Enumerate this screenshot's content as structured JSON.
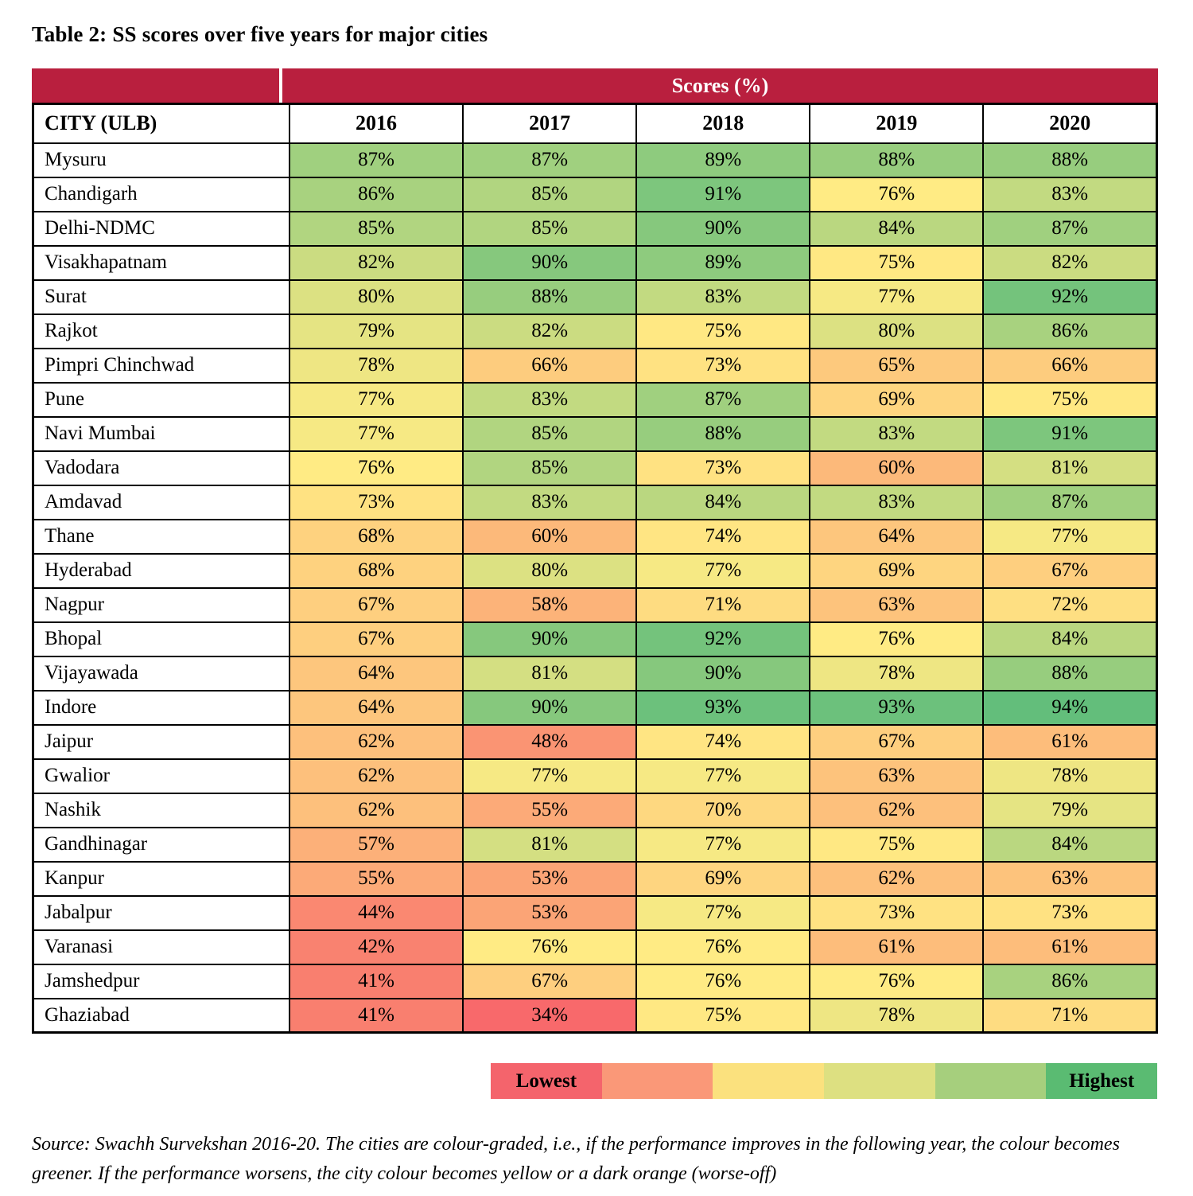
{
  "chart_data": {
    "type": "heatmap",
    "title": "Table 2: SS scores over five years for major cities",
    "group_header": "Scores (%)",
    "group_header_bg": "#B91F3E",
    "group_header_text_color": "#FFFFFF",
    "row_header": "CITY (ULB)",
    "columns": [
      "2016",
      "2017",
      "2018",
      "2019",
      "2020"
    ],
    "value_suffix": "%",
    "rows": [
      {
        "city": "Mysuru",
        "values": [
          87,
          87,
          89,
          88,
          88
        ]
      },
      {
        "city": "Chandigarh",
        "values": [
          86,
          85,
          91,
          76,
          83
        ]
      },
      {
        "city": "Delhi-NDMC",
        "values": [
          85,
          85,
          90,
          84,
          87
        ]
      },
      {
        "city": "Visakhapatnam",
        "values": [
          82,
          90,
          89,
          75,
          82
        ]
      },
      {
        "city": "Surat",
        "values": [
          80,
          88,
          83,
          77,
          92
        ]
      },
      {
        "city": "Rajkot",
        "values": [
          79,
          82,
          75,
          80,
          86
        ]
      },
      {
        "city": "Pimpri Chinchwad",
        "values": [
          78,
          66,
          73,
          65,
          66
        ]
      },
      {
        "city": "Pune",
        "values": [
          77,
          83,
          87,
          69,
          75
        ]
      },
      {
        "city": "Navi Mumbai",
        "values": [
          77,
          85,
          88,
          83,
          91
        ]
      },
      {
        "city": "Vadodara",
        "values": [
          76,
          85,
          73,
          60,
          81
        ]
      },
      {
        "city": "Amdavad",
        "values": [
          73,
          83,
          84,
          83,
          87
        ]
      },
      {
        "city": "Thane",
        "values": [
          68,
          60,
          74,
          64,
          77
        ]
      },
      {
        "city": "Hyderabad",
        "values": [
          68,
          80,
          77,
          69,
          67
        ]
      },
      {
        "city": "Nagpur",
        "values": [
          67,
          58,
          71,
          63,
          72
        ]
      },
      {
        "city": "Bhopal",
        "values": [
          67,
          90,
          92,
          76,
          84
        ]
      },
      {
        "city": "Vijayawada",
        "values": [
          64,
          81,
          90,
          78,
          88
        ]
      },
      {
        "city": "Indore",
        "values": [
          64,
          90,
          93,
          93,
          94
        ]
      },
      {
        "city": "Jaipur",
        "values": [
          62,
          48,
          74,
          67,
          61
        ]
      },
      {
        "city": "Gwalior",
        "values": [
          62,
          77,
          77,
          63,
          78
        ]
      },
      {
        "city": "Nashik",
        "values": [
          62,
          55,
          70,
          62,
          79
        ]
      },
      {
        "city": "Gandhinagar",
        "values": [
          57,
          81,
          77,
          75,
          84
        ]
      },
      {
        "city": "Kanpur",
        "values": [
          55,
          53,
          69,
          62,
          63
        ]
      },
      {
        "city": "Jabalpur",
        "values": [
          44,
          53,
          77,
          73,
          73
        ]
      },
      {
        "city": "Varanasi",
        "values": [
          42,
          76,
          76,
          61,
          61
        ]
      },
      {
        "city": "Jamshedpur",
        "values": [
          41,
          67,
          76,
          76,
          86
        ]
      },
      {
        "city": "Ghaziabad",
        "values": [
          41,
          34,
          75,
          78,
          71
        ]
      }
    ],
    "color_scale": {
      "min": 34,
      "mid": 76,
      "max": 94,
      "min_color": "#F8696B",
      "mid_color": "#FFEB84",
      "max_color": "#63BE7B"
    },
    "legend": {
      "lowest_label": "Lowest",
      "highest_label": "Highest",
      "swatches": [
        "#F4646C",
        "#FA9878",
        "#FBE17E",
        "#DDE081",
        "#A6CF7D",
        "#5ABB72"
      ]
    }
  },
  "source_note": "Source: Swachh Survekshan 2016-20. The cities are colour-graded, i.e., if the performance improves in the following year, the colour becomes greener. If the performance worsens, the city colour becomes yellow or a dark orange (worse-off)"
}
